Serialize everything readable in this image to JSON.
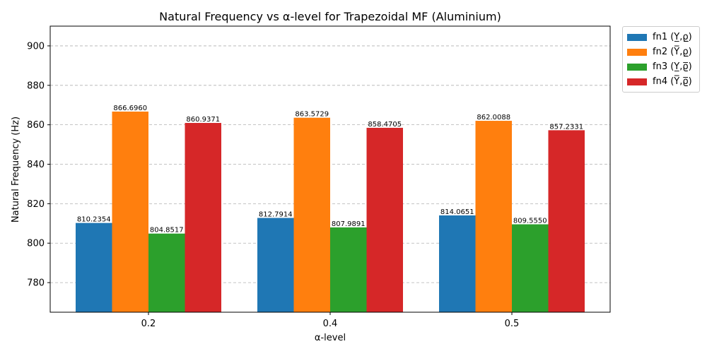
{
  "chart_data": {
    "type": "bar",
    "title": "Natural Frequency vs α-level for Trapezoidal MF (Aluminium)",
    "xlabel": "α-level",
    "ylabel": "Natural Frequency (Hz)",
    "categories": [
      "0.2",
      "0.4",
      "0.5"
    ],
    "ylim": [
      765,
      910
    ],
    "yticks": [
      780,
      800,
      820,
      840,
      860,
      880,
      900
    ],
    "grid": true,
    "grid_axis": "y",
    "legend_position": "outside-top-right",
    "series": [
      {
        "name": "fn1 (Y̲,ϱ̲)",
        "color": "#1f77b4",
        "values": [
          810.2354,
          812.7914,
          814.0651
        ],
        "labels": [
          "810.2354",
          "812.7914",
          "814.0651"
        ]
      },
      {
        "name": "fn2 (Y̅,ϱ̲)",
        "color": "#ff7f0e",
        "values": [
          866.696,
          863.5729,
          862.0088
        ],
        "labels": [
          "866.6960",
          "863.5729",
          "862.0088"
        ]
      },
      {
        "name": "fn3 (Y̲,ϱ̅)",
        "color": "#2ca02c",
        "values": [
          804.8517,
          807.9891,
          809.555
        ],
        "labels": [
          "804.8517",
          "807.9891",
          "809.5550"
        ]
      },
      {
        "name": "fn4 (Y̅,ϱ̅)",
        "color": "#d62728",
        "values": [
          860.9371,
          858.4705,
          857.2331
        ],
        "labels": [
          "860.9371",
          "858.4705",
          "857.2331"
        ]
      }
    ]
  }
}
